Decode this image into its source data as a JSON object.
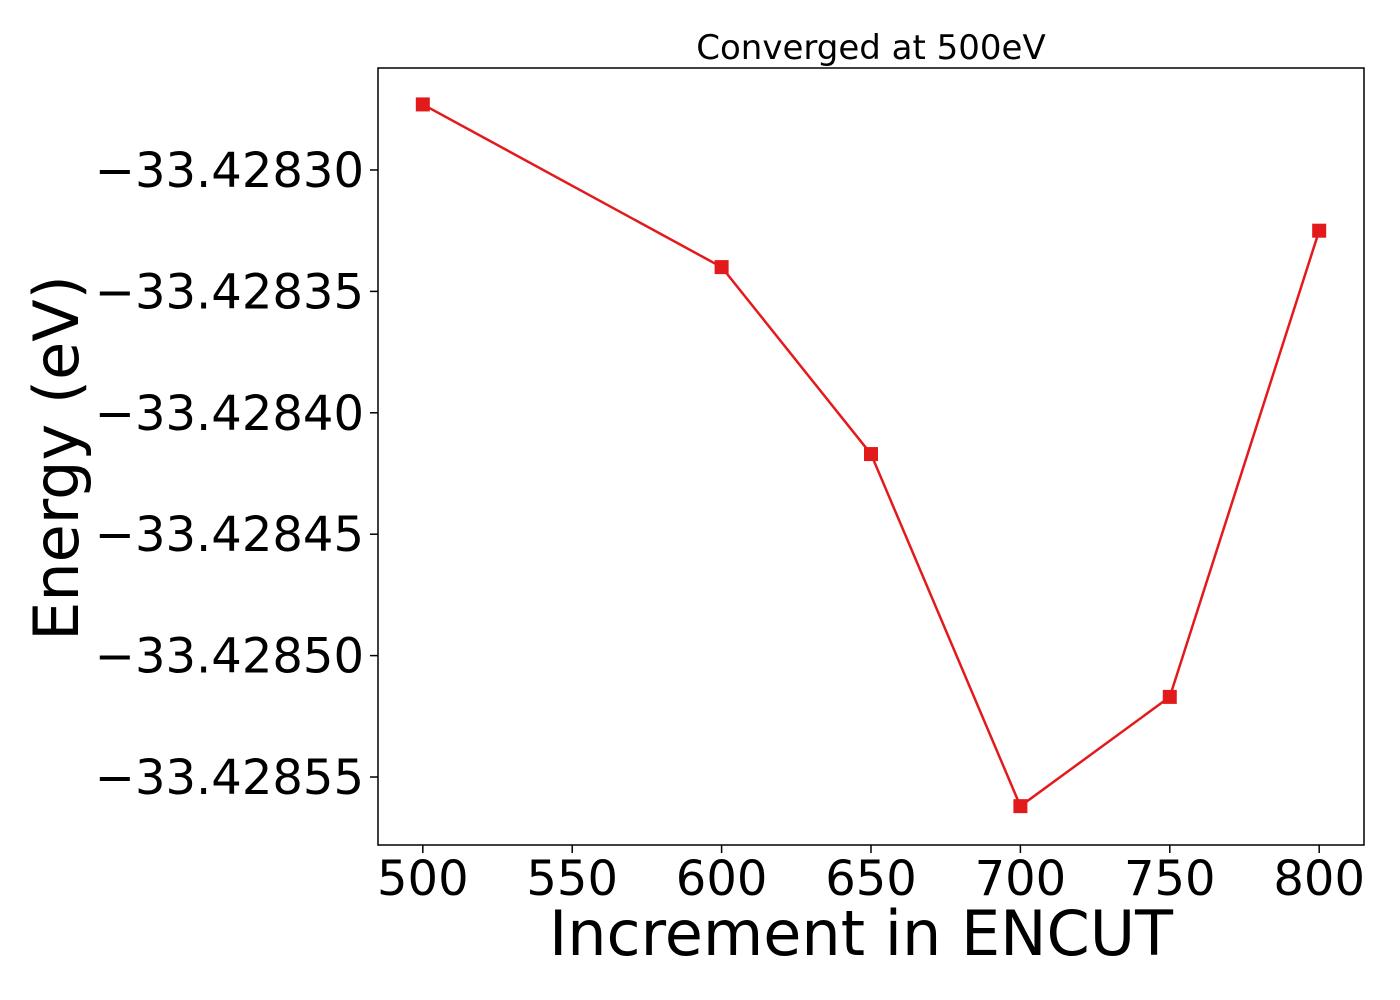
{
  "chart_data": {
    "type": "line",
    "title": "Converged at 500eV",
    "xlabel": "Increment in ENCUT",
    "ylabel": "Energy (eV)",
    "x": [
      500,
      600,
      650,
      700,
      750,
      800
    ],
    "series": [
      {
        "values": [
          -33.428273,
          -33.42834,
          -33.428417,
          -33.428562,
          -33.428517,
          -33.428325
        ],
        "color": "#e31a1c",
        "marker": "square"
      }
    ],
    "xlim": [
      485,
      815
    ],
    "ylim": [
      -33.428578,
      -33.428258
    ],
    "xticks": [
      500,
      550,
      600,
      650,
      700,
      750,
      800
    ],
    "xtick_labels": [
      "500",
      "550",
      "600",
      "650",
      "700",
      "750",
      "800"
    ],
    "yticks": [
      -33.4283,
      -33.42835,
      -33.4284,
      -33.42845,
      -33.4285,
      -33.42855
    ],
    "ytick_labels": [
      "−33.42830",
      "−33.42835",
      "−33.42840",
      "−33.42845",
      "−33.42850",
      "−33.42855"
    ],
    "grid": false,
    "legend": "none"
  }
}
